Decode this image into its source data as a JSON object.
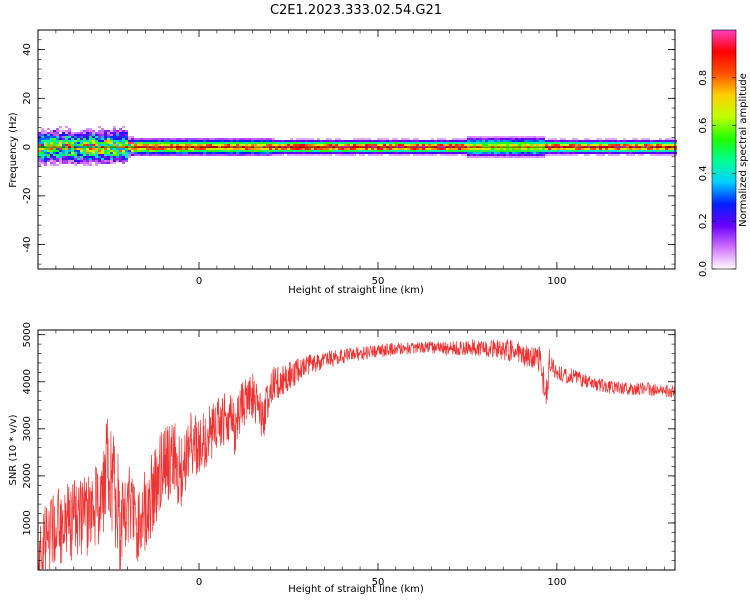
{
  "title": "C2E1.2023.333.02.54.G21",
  "chart_data": [
    {
      "type": "heatmap",
      "xlabel": "Height of straight line (km)",
      "ylabel": "Frequency (Hz)",
      "xlim": [
        -45,
        133
      ],
      "ylim": [
        -50,
        48
      ],
      "xticks": [
        0,
        50,
        100
      ],
      "yticks": [
        -40,
        -20,
        0,
        20,
        40
      ],
      "colorbar": {
        "label": "Normalized spectral amplitude",
        "range": [
          0,
          1
        ],
        "ticks": [
          0.0,
          0.2,
          0.4,
          0.6,
          0.8
        ],
        "tick_labels": [
          "0.0",
          "0.2",
          "0.4",
          "0.6",
          "0.8"
        ],
        "colors": [
          "#ffffff",
          "#d070ff",
          "#6a00ff",
          "#0020ff",
          "#00d0ff",
          "#00ff90",
          "#20ff00",
          "#c0ff00",
          "#ffd000",
          "#ff5000",
          "#ff0000",
          "#ff40c0"
        ]
      },
      "ridge": {
        "frequency_hz": 0,
        "segments": [
          {
            "x": [
              -45,
              -20
            ],
            "half_width_hz": 6,
            "peak_amplitude": 0.6
          },
          {
            "x": [
              -20,
              20
            ],
            "half_width_hz": 3,
            "peak_amplitude": 0.85
          },
          {
            "x": [
              20,
              75
            ],
            "half_width_hz": 2.5,
            "peak_amplitude": 0.95
          },
          {
            "x": [
              75,
              97
            ],
            "half_width_hz": 3.5,
            "peak_amplitude": 0.7
          },
          {
            "x": [
              97,
              133
            ],
            "half_width_hz": 2.5,
            "peak_amplitude": 0.9
          }
        ]
      }
    },
    {
      "type": "line",
      "xlabel": "Height of straight line (km)",
      "ylabel": "SNR (10 * v/v)",
      "xlim": [
        -45,
        133
      ],
      "ylim": [
        0,
        5100
      ],
      "xticks": [
        0,
        50,
        100
      ],
      "yticks": [
        1000,
        2000,
        3000,
        4000,
        5000
      ],
      "series": [
        {
          "color": "#ee3333",
          "x": [
            -45,
            -40,
            -35,
            -30,
            -27,
            -25,
            -22,
            -20,
            -17,
            -15,
            -12,
            -10,
            -7,
            -5,
            -2,
            0,
            3,
            5,
            8,
            10,
            12,
            15,
            18,
            20,
            22,
            25,
            28,
            30,
            35,
            40,
            45,
            50,
            55,
            60,
            65,
            70,
            75,
            80,
            85,
            90,
            93,
            95,
            97,
            98,
            100,
            105,
            110,
            115,
            120,
            125,
            130,
            133
          ],
          "y": [
            400,
            900,
            1100,
            1200,
            1600,
            2300,
            1000,
            1500,
            800,
            1300,
            1800,
            2200,
            2400,
            2000,
            2700,
            2600,
            2900,
            3100,
            3300,
            3000,
            3500,
            3700,
            3200,
            3900,
            4000,
            4100,
            4250,
            4350,
            4450,
            4550,
            4600,
            4650,
            4700,
            4720,
            4720,
            4700,
            4720,
            4720,
            4680,
            4600,
            4500,
            4500,
            3700,
            4500,
            4200,
            4100,
            3950,
            3900,
            3850,
            3850,
            3800,
            3800
          ],
          "noise": [
            800,
            900,
            1000,
            1000,
            1200,
            1400,
            1300,
            1100,
            900,
            1000,
            1000,
            900,
            900,
            900,
            800,
            700,
            700,
            650,
            650,
            650,
            600,
            550,
            500,
            450,
            400,
            350,
            300,
            250,
            200,
            180,
            170,
            160,
            150,
            150,
            150,
            170,
            200,
            200,
            250,
            280,
            300,
            350,
            400,
            300,
            200,
            180,
            160,
            160,
            150,
            150,
            150,
            150
          ]
        }
      ]
    }
  ]
}
